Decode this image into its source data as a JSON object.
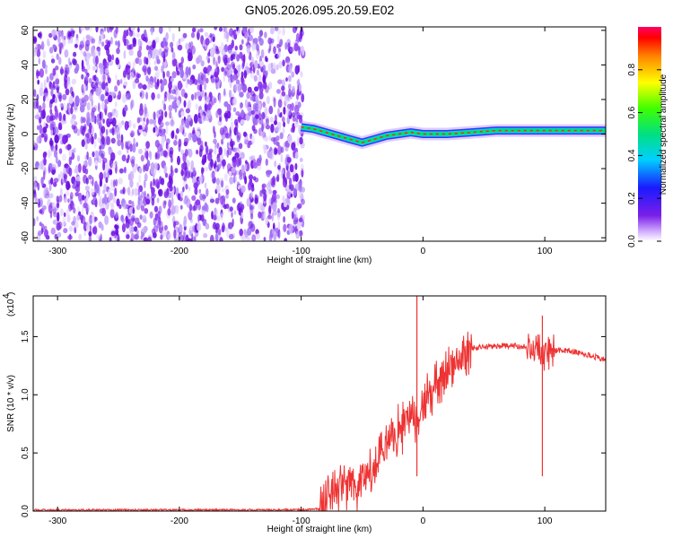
{
  "title": "GN05.2026.095.20.59.E02",
  "colors": {
    "snr_line": "#ee3333",
    "spectrogram_noise": "#7a1fe8"
  },
  "chart_data": [
    {
      "type": "heatmap",
      "xlabel": "Height of straight line (km)",
      "ylabel": "Frequency (Hz)",
      "xlim": [
        -320,
        150
      ],
      "ylim": [
        -62,
        62
      ],
      "xticks": [
        -300,
        -200,
        -100,
        0,
        100
      ],
      "yticks": [
        -60,
        -40,
        -20,
        0,
        20,
        40,
        60
      ],
      "colorbar": {
        "label": "Normalized spectral amplitude",
        "range": [
          0.0,
          1.0
        ],
        "ticks": [
          0.0,
          0.2,
          0.4,
          0.6,
          0.8
        ]
      },
      "noise_region_x": [
        -320,
        -98
      ],
      "signal_track": [
        {
          "x": -100,
          "y": 4
        },
        {
          "x": -90,
          "y": 3
        },
        {
          "x": -80,
          "y": 1
        },
        {
          "x": -70,
          "y": -1
        },
        {
          "x": -60,
          "y": -3
        },
        {
          "x": -50,
          "y": -5
        },
        {
          "x": -40,
          "y": -3
        },
        {
          "x": -30,
          "y": -1
        },
        {
          "x": -20,
          "y": 0
        },
        {
          "x": -10,
          "y": 1
        },
        {
          "x": 0,
          "y": 0
        },
        {
          "x": 20,
          "y": 0
        },
        {
          "x": 40,
          "y": 1
        },
        {
          "x": 60,
          "y": 2
        },
        {
          "x": 80,
          "y": 2
        },
        {
          "x": 100,
          "y": 2
        },
        {
          "x": 150,
          "y": 2
        }
      ]
    },
    {
      "type": "line",
      "xlabel": "Height of straight line (km)",
      "ylabel": "SNR (10 * v/v)",
      "yscale_label": "(x10",
      "yscale_exp": "4",
      "xlim": [
        -320,
        150
      ],
      "ylim": [
        0,
        1.85
      ],
      "xticks": [
        -300,
        -200,
        -100,
        0,
        100
      ],
      "yticks": [
        0.0,
        0.5,
        1.0,
        1.5
      ],
      "series": [
        {
          "x": [
            -320,
            -250,
            -200,
            -150,
            -100,
            -85,
            -75,
            -65,
            -55,
            -45,
            -35,
            -25,
            -15,
            -10,
            -5,
            0,
            10,
            20,
            30,
            40,
            60,
            80,
            90,
            100,
            110,
            120,
            140,
            150
          ],
          "y": [
            0.01,
            0.01,
            0.01,
            0.01,
            0.01,
            0.02,
            0.15,
            0.25,
            0.2,
            0.3,
            0.45,
            0.6,
            0.75,
            0.8,
            0.85,
            0.9,
            1.05,
            1.2,
            1.3,
            1.4,
            1.42,
            1.42,
            1.4,
            1.38,
            1.38,
            1.38,
            1.33,
            1.3
          ]
        }
      ],
      "spikes": [
        {
          "x": -5,
          "y": 1.85
        },
        {
          "x": 98,
          "y": 1.68
        }
      ]
    }
  ]
}
